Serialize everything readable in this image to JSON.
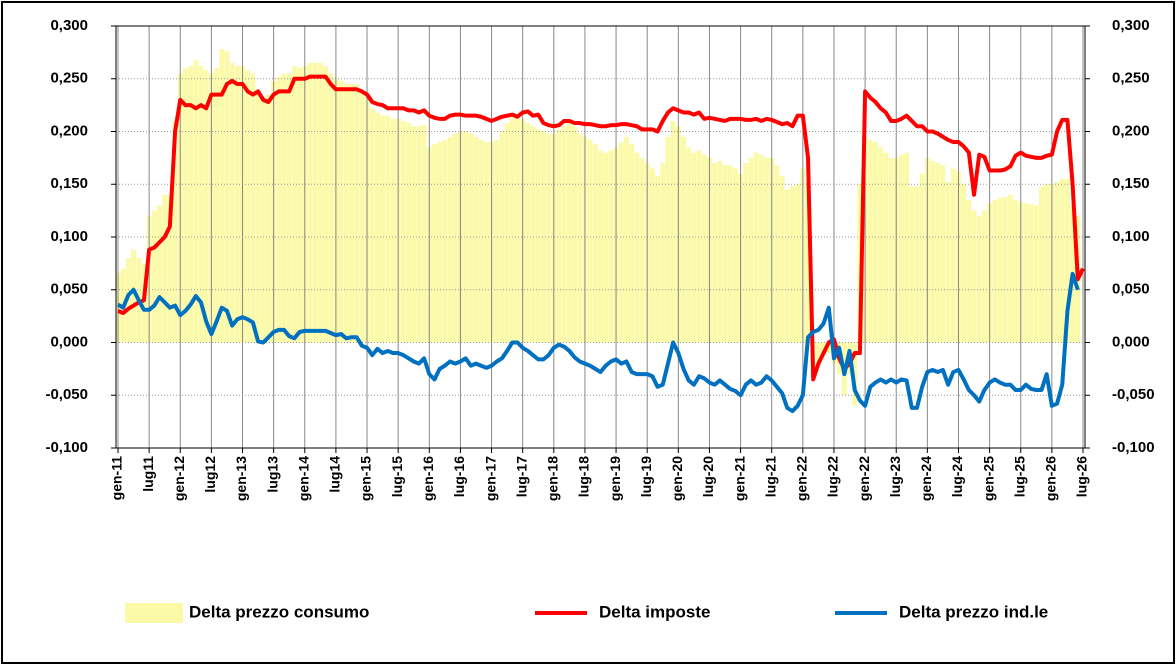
{
  "chart_data": {
    "type": "bar_line",
    "categories": [
      "gen-11",
      null,
      null,
      null,
      null,
      null,
      "lug11",
      null,
      null,
      null,
      null,
      null,
      "gen-12",
      null,
      null,
      null,
      null,
      null,
      "lug12",
      null,
      null,
      null,
      null,
      null,
      "gen-13",
      null,
      null,
      null,
      null,
      null,
      "lug13",
      null,
      null,
      null,
      null,
      null,
      "gen-14",
      null,
      null,
      null,
      null,
      null,
      "lug14",
      null,
      null,
      null,
      null,
      null,
      "gen-15",
      null,
      null,
      null,
      null,
      null,
      "lug-15",
      null,
      null,
      null,
      null,
      null,
      "gen-16",
      null,
      null,
      null,
      null,
      null,
      "lug-16",
      null,
      null,
      null,
      null,
      null,
      "gen-17",
      null,
      null,
      null,
      null,
      null,
      "lug-17",
      null,
      null,
      null,
      null,
      null,
      "gen-18",
      null,
      null,
      null,
      null,
      null,
      "lug-18",
      null,
      null,
      null,
      null,
      null,
      "gen-19",
      null,
      null,
      null,
      null,
      null,
      "lug-19",
      null,
      null,
      null,
      null,
      null,
      "gen-20",
      null,
      null,
      null,
      null,
      null,
      "lug-20",
      null,
      null,
      null,
      null,
      null,
      "gen-21",
      null,
      null,
      null,
      null,
      null,
      "lug-21",
      null,
      null,
      null,
      null,
      null,
      "gen-22",
      null,
      null,
      null,
      null,
      null,
      "lug-22",
      null,
      null,
      null,
      null,
      null,
      "gen-22",
      null,
      null,
      null,
      null,
      null,
      "lug-23",
      null,
      null,
      null,
      null,
      null,
      "gen-24",
      null,
      null,
      null,
      null,
      null,
      "lug-24",
      null,
      null,
      null,
      null,
      null,
      "gen-25",
      null,
      null,
      null,
      null,
      null,
      "lug-25",
      null,
      null,
      null,
      null,
      null,
      "gen-26",
      null,
      null,
      null,
      null,
      null,
      "lug-26"
    ],
    "series": [
      {
        "name": "Delta prezzo consumo",
        "type": "bar",
        "color": "#fafaa8",
        "values": [
          0.066,
          0.07,
          0.08,
          0.088,
          0.08,
          0.075,
          0.12,
          0.125,
          0.13,
          0.14,
          0.14,
          0.21,
          0.255,
          0.26,
          0.262,
          0.268,
          0.262,
          0.258,
          0.255,
          0.26,
          0.278,
          0.276,
          0.265,
          0.262,
          0.262,
          0.258,
          0.255,
          0.236,
          0.232,
          0.235,
          0.248,
          0.252,
          0.255,
          0.255,
          0.262,
          0.26,
          0.262,
          0.265,
          0.265,
          0.265,
          0.262,
          0.255,
          0.25,
          0.248,
          0.245,
          0.245,
          0.245,
          0.238,
          0.232,
          0.222,
          0.218,
          0.215,
          0.215,
          0.212,
          0.212,
          0.21,
          0.208,
          0.205,
          0.205,
          0.206,
          0.185,
          0.188,
          0.19,
          0.192,
          0.195,
          0.198,
          0.2,
          0.2,
          0.198,
          0.195,
          0.192,
          0.19,
          0.19,
          0.192,
          0.2,
          0.208,
          0.215,
          0.212,
          0.212,
          0.208,
          0.205,
          0.202,
          0.2,
          0.198,
          0.198,
          0.202,
          0.205,
          0.208,
          0.205,
          0.198,
          0.195,
          0.192,
          0.188,
          0.182,
          0.18,
          0.182,
          0.185,
          0.19,
          0.195,
          0.188,
          0.18,
          0.175,
          0.17,
          0.165,
          0.158,
          0.17,
          0.195,
          0.21,
          0.205,
          0.195,
          0.185,
          0.18,
          0.182,
          0.178,
          0.175,
          0.17,
          0.172,
          0.168,
          0.168,
          0.165,
          0.16,
          0.17,
          0.175,
          0.18,
          0.178,
          0.175,
          0.175,
          0.168,
          0.158,
          0.145,
          0.148,
          0.15,
          0.165,
          0.15,
          -0.03,
          -0.02,
          -0.01,
          -0.01,
          -0.02,
          -0.03,
          -0.05,
          -0.03,
          -0.06,
          0.15,
          0.195,
          0.192,
          0.19,
          0.185,
          0.18,
          0.175,
          0.175,
          0.178,
          0.18,
          0.148,
          0.148,
          0.16,
          0.175,
          0.172,
          0.17,
          0.168,
          0.152,
          0.165,
          0.162,
          0.15,
          0.135,
          0.125,
          0.12,
          0.125,
          0.132,
          0.135,
          0.137,
          0.138,
          0.14,
          0.135,
          0.133,
          0.132,
          0.131,
          0.13,
          0.148,
          0.15,
          0.15,
          0.152,
          0.155,
          0.155,
          0.13,
          0.12,
          null
        ]
      },
      {
        "name": "Delta imposte",
        "type": "line",
        "color": "#ff0000",
        "values": [
          0.03,
          0.028,
          0.032,
          0.035,
          0.038,
          0.04,
          0.088,
          0.09,
          0.095,
          0.1,
          0.11,
          0.2,
          0.23,
          0.225,
          0.225,
          0.222,
          0.225,
          0.222,
          0.235,
          0.235,
          0.235,
          0.245,
          0.248,
          0.245,
          0.245,
          0.238,
          0.235,
          0.238,
          0.23,
          0.228,
          0.235,
          0.238,
          0.238,
          0.238,
          0.25,
          0.25,
          0.25,
          0.252,
          0.252,
          0.252,
          0.252,
          0.245,
          0.24,
          0.24,
          0.24,
          0.24,
          0.24,
          0.238,
          0.235,
          0.228,
          0.226,
          0.225,
          0.222,
          0.222,
          0.222,
          0.222,
          0.22,
          0.22,
          0.218,
          0.22,
          0.215,
          0.213,
          0.212,
          0.212,
          0.215,
          0.216,
          0.216,
          0.215,
          0.215,
          0.215,
          0.214,
          0.212,
          0.21,
          0.212,
          0.214,
          0.215,
          0.216,
          0.214,
          0.218,
          0.219,
          0.215,
          0.216,
          0.208,
          0.206,
          0.205,
          0.206,
          0.21,
          0.21,
          0.208,
          0.208,
          0.207,
          0.207,
          0.206,
          0.205,
          0.205,
          0.206,
          0.206,
          0.207,
          0.207,
          0.206,
          0.205,
          0.202,
          0.202,
          0.202,
          0.2,
          0.21,
          0.218,
          0.222,
          0.22,
          0.218,
          0.218,
          0.216,
          0.218,
          0.212,
          0.213,
          0.212,
          0.211,
          0.21,
          0.212,
          0.212,
          0.212,
          0.211,
          0.211,
          0.212,
          0.21,
          0.212,
          0.211,
          0.209,
          0.207,
          0.208,
          0.205,
          0.215,
          0.215,
          0.175,
          -0.035,
          -0.02,
          -0.01,
          0.0,
          0.003,
          -0.015,
          -0.025,
          -0.02,
          -0.01,
          -0.01,
          0.238,
          0.232,
          0.228,
          0.222,
          0.218,
          0.21,
          0.21,
          0.212,
          0.215,
          0.21,
          0.205,
          0.205,
          0.2,
          0.2,
          0.198,
          0.195,
          0.192,
          0.19,
          0.19,
          0.186,
          0.18,
          0.14,
          0.178,
          0.176,
          0.163,
          0.163,
          0.163,
          0.164,
          0.167,
          0.177,
          0.18,
          0.177,
          0.176,
          0.175,
          0.175,
          0.177,
          0.178,
          0.2,
          0.211,
          0.211,
          0.15,
          0.06,
          0.07
        ]
      },
      {
        "name": "Delta prezzo ind.le",
        "type": "line",
        "color": "#0070c0",
        "values": [
          0.036,
          0.033,
          0.045,
          0.05,
          0.04,
          0.031,
          0.031,
          0.035,
          0.043,
          0.038,
          0.033,
          0.035,
          0.026,
          0.03,
          0.036,
          0.044,
          0.038,
          0.02,
          0.008,
          0.02,
          0.033,
          0.03,
          0.016,
          0.022,
          0.024,
          0.022,
          0.019,
          0.001,
          0.0,
          0.005,
          0.01,
          0.012,
          0.012,
          0.006,
          0.004,
          0.01,
          0.011,
          0.011,
          0.011,
          0.011,
          0.011,
          0.009,
          0.007,
          0.008,
          0.004,
          0.005,
          0.005,
          -0.003,
          -0.005,
          -0.012,
          -0.006,
          -0.01,
          -0.008,
          -0.01,
          -0.01,
          -0.012,
          -0.015,
          -0.018,
          -0.02,
          -0.015,
          -0.03,
          -0.035,
          -0.025,
          -0.022,
          -0.018,
          -0.02,
          -0.018,
          -0.015,
          -0.022,
          -0.02,
          -0.022,
          -0.024,
          -0.022,
          -0.018,
          -0.015,
          -0.008,
          0.0,
          0.0,
          -0.005,
          -0.008,
          -0.012,
          -0.016,
          -0.016,
          -0.012,
          -0.005,
          -0.002,
          -0.004,
          -0.008,
          -0.014,
          -0.018,
          -0.02,
          -0.022,
          -0.025,
          -0.028,
          -0.022,
          -0.018,
          -0.016,
          -0.02,
          -0.018,
          -0.028,
          -0.03,
          -0.03,
          -0.03,
          -0.032,
          -0.042,
          -0.04,
          -0.02,
          0.0,
          -0.01,
          -0.025,
          -0.036,
          -0.04,
          -0.032,
          -0.034,
          -0.038,
          -0.04,
          -0.036,
          -0.04,
          -0.044,
          -0.046,
          -0.05,
          -0.04,
          -0.036,
          -0.04,
          -0.038,
          -0.032,
          -0.036,
          -0.042,
          -0.048,
          -0.062,
          -0.065,
          -0.06,
          -0.05,
          0.005,
          0.01,
          0.012,
          0.018,
          0.033,
          -0.015,
          -0.005,
          -0.03,
          -0.008,
          -0.045,
          -0.055,
          -0.06,
          -0.042,
          -0.038,
          -0.035,
          -0.038,
          -0.035,
          -0.038,
          -0.035,
          -0.036,
          -0.062,
          -0.062,
          -0.042,
          -0.028,
          -0.026,
          -0.028,
          -0.026,
          -0.04,
          -0.028,
          -0.026,
          -0.035,
          -0.045,
          -0.05,
          -0.056,
          -0.045,
          -0.038,
          -0.035,
          -0.038,
          -0.04,
          -0.04,
          -0.045,
          -0.045,
          -0.04,
          -0.044,
          -0.045,
          -0.045,
          -0.03,
          -0.06,
          -0.058,
          -0.04,
          0.03,
          0.065,
          0.05,
          null
        ]
      }
    ],
    "ylim": [
      -0.1,
      0.3
    ],
    "yticks": [
      {
        "value": -0.1,
        "label": "-0,100"
      },
      {
        "value": -0.05,
        "label": "-0,050"
      },
      {
        "value": 0,
        "label": "0,000"
      },
      {
        "value": 0.05,
        "label": "0,050"
      },
      {
        "value": 0.1,
        "label": "0,100"
      },
      {
        "value": 0.15,
        "label": "0,150"
      },
      {
        "value": 0.2,
        "label": "0,200"
      },
      {
        "value": 0.25,
        "label": "0,250"
      },
      {
        "value": 0.3,
        "label": "0,300"
      }
    ],
    "y2lim": [
      -0.1,
      0.3
    ],
    "y2ticks": [
      {
        "value": -0.1,
        "label": "-0,100"
      },
      {
        "value": -0.05,
        "label": "-0,050"
      },
      {
        "value": 0,
        "label": "0,000"
      },
      {
        "value": 0.05,
        "label": "0,050"
      },
      {
        "value": 0.1,
        "label": "0,100"
      },
      {
        "value": 0.15,
        "label": "0,150"
      },
      {
        "value": 0.2,
        "label": "0,200"
      },
      {
        "value": 0.25,
        "label": "0,250"
      },
      {
        "value": 0.3,
        "label": "0,300"
      }
    ],
    "grid": true,
    "legend": "bottom"
  }
}
